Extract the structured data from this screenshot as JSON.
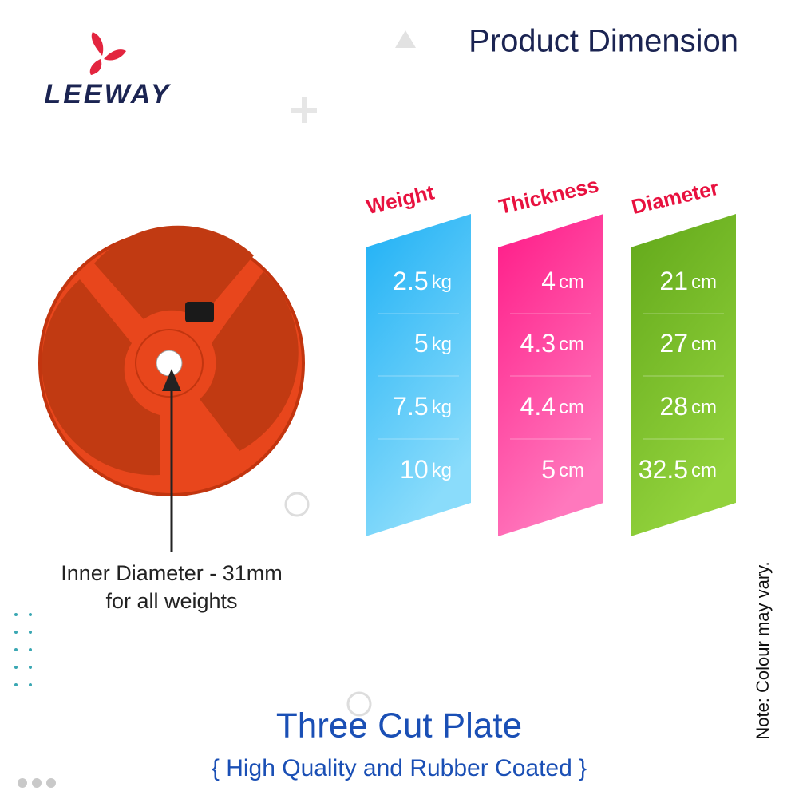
{
  "header": {
    "brand": "LEEWAY",
    "title": "Product Dimension"
  },
  "columns": [
    {
      "heading": "Weight",
      "rows": [
        {
          "value": 2.5,
          "unit": "kg"
        },
        {
          "value": 5,
          "unit": "kg"
        },
        {
          "value": 7.5,
          "unit": "kg"
        },
        {
          "value": 10,
          "unit": "kg"
        }
      ]
    },
    {
      "heading": "Thickness",
      "rows": [
        {
          "value": 4,
          "unit": "cm"
        },
        {
          "value": 4.3,
          "unit": "cm"
        },
        {
          "value": 4.4,
          "unit": "cm"
        },
        {
          "value": 5,
          "unit": "cm"
        }
      ]
    },
    {
      "heading": "Diameter",
      "rows": [
        {
          "value": 21,
          "unit": "cm"
        },
        {
          "value": 27,
          "unit": "cm"
        },
        {
          "value": 28,
          "unit": "cm"
        },
        {
          "value": 32.5,
          "unit": "cm"
        }
      ]
    }
  ],
  "inner_diameter": {
    "line1": "Inner Diameter - 31mm",
    "line2": "for all weights"
  },
  "footer": {
    "title": "Three Cut Plate",
    "subtitle": "{ High Quality and Rubber Coated }"
  },
  "note": "Note: Colour may vary."
}
